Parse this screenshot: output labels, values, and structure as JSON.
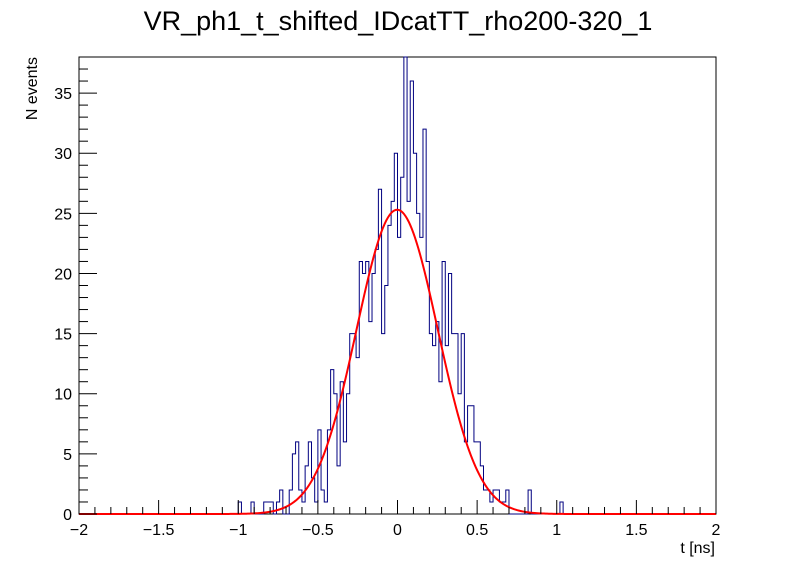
{
  "chart_data": {
    "type": "histogram",
    "title": "VR_ph1_t_shifted_IDcatTT_rho200-320_1",
    "xlabel": "t [ns]",
    "ylabel": "N events",
    "xlim": [
      -2,
      2
    ],
    "ylim": [
      0,
      38
    ],
    "x_ticks": [
      -2,
      -1.5,
      -1,
      -0.5,
      0,
      0.5,
      1,
      1.5,
      2
    ],
    "x_tick_labels": [
      "−2",
      "−1.5",
      "−1",
      "−0.5",
      "0",
      "0.5",
      "1",
      "1.5",
      "2"
    ],
    "y_ticks": [
      0,
      5,
      10,
      15,
      20,
      25,
      30,
      35
    ],
    "y_tick_labels": [
      "0",
      "5",
      "10",
      "15",
      "20",
      "25",
      "30",
      "35"
    ],
    "histogram": {
      "name": "data",
      "color": "#000080",
      "x_start": -1.0,
      "bin_width": 0.02,
      "counts": [
        1,
        0,
        0,
        0,
        1,
        0,
        0,
        0,
        1,
        1,
        1,
        0,
        1,
        2,
        0,
        0,
        2,
        5,
        6,
        2,
        1,
        4,
        6,
        3,
        1,
        7,
        2,
        1,
        7,
        12,
        10,
        4,
        11,
        6,
        10,
        15,
        15,
        13,
        21,
        20,
        21,
        16,
        20,
        22,
        27,
        15,
        19,
        24,
        26,
        30,
        23,
        28,
        38,
        26,
        36,
        30,
        25,
        23,
        32,
        21,
        15,
        14,
        16,
        11,
        21,
        14,
        20,
        15,
        15,
        10,
        15,
        6,
        9,
        9,
        6,
        6,
        4,
        2,
        2,
        1,
        2,
        2,
        1,
        1,
        2,
        0,
        0,
        0,
        0,
        0,
        0,
        2,
        0,
        0,
        0,
        0,
        0,
        0,
        0,
        0,
        0,
        1,
        0,
        0,
        0,
        0,
        0,
        0,
        0,
        0,
        0,
        0,
        0,
        0,
        0,
        0
      ]
    },
    "fit": {
      "name": "gaussian fit",
      "color": "#ff0000",
      "function": "gaus",
      "amplitude": 25.3,
      "mean": -0.002,
      "sigma": 0.255,
      "range": [
        -2,
        2
      ]
    }
  }
}
